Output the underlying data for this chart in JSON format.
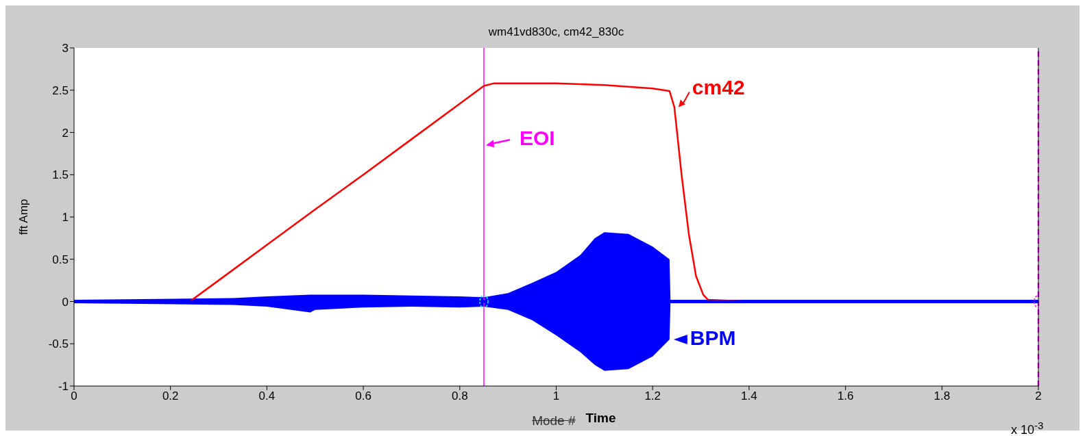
{
  "chart_data": {
    "type": "line",
    "title": "wm41vd830c, cm42_830c",
    "xlabel": "Time",
    "ylabel": "fft Amp",
    "annotations": [
      "Mode #",
      "x 10$^{-3}$"
    ],
    "xlim": [
      0,
      2
    ],
    "xticks": [
      0,
      0.2,
      0.4,
      0.6,
      0.8,
      1,
      1.2,
      1.4,
      1.6,
      1.8,
      2
    ],
    "ylim": [
      -1,
      3
    ],
    "yticks": [
      -1,
      -0.5,
      0,
      0.5,
      1,
      1.5,
      2,
      2.5,
      3
    ],
    "grid": false,
    "legend": "right",
    "ref_lines": [
      {
        "axis": "x",
        "value": 0.85,
        "label": "EOI",
        "color": "#ff00ff",
        "line_style": "solid"
      },
      {
        "axis": "x",
        "value": 2,
        "label": null,
        "color": "#ff00ff",
        "line_style": "dashed"
      }
    ],
    "series": [
      {
        "name": "cm42",
        "color": "#ff0000",
        "x": [
          0,
          0.24,
          0.3,
          0.4,
          0.5,
          0.6,
          0.7,
          0.8,
          0.85,
          0.87,
          0.95,
          1.0,
          1.05,
          1.1,
          1.15,
          1.2,
          1.235,
          1.245,
          1.26,
          1.275,
          1.29,
          1.305,
          1.315,
          1.4,
          2
        ],
        "values": [
          0,
          0,
          0.25,
          0.67,
          1.09,
          1.5,
          1.92,
          2.34,
          2.55,
          2.58,
          2.58,
          2.58,
          2.57,
          2.56,
          2.54,
          2.52,
          2.49,
          2.3,
          1.5,
          0.8,
          0.3,
          0.08,
          0.02,
          0,
          0
        ]
      },
      {
        "name": "BPM",
        "color": "#0000ff",
        "x": [
          0,
          0.33,
          0.4,
          0.49,
          0.5,
          0.6,
          0.7,
          0.8,
          0.85,
          0.9,
          0.95,
          1.0,
          1.05,
          1.08,
          1.1,
          1.15,
          1.2,
          1.235,
          1.237,
          2
        ],
        "values": [
          0,
          0,
          0,
          0,
          0,
          0,
          0,
          0,
          0,
          0,
          0,
          0,
          0,
          0,
          0,
          0,
          0,
          0,
          0,
          0
        ],
        "upper": [
          0.02,
          0.04,
          0.06,
          0.08,
          0.08,
          0.08,
          0.07,
          0.06,
          0.05,
          0.1,
          0.22,
          0.35,
          0.55,
          0.75,
          0.82,
          0.8,
          0.65,
          0.5,
          0.02,
          0.02
        ],
        "lower": [
          -0.02,
          -0.04,
          -0.06,
          -0.13,
          -0.1,
          -0.07,
          -0.06,
          -0.07,
          -0.06,
          -0.1,
          -0.22,
          -0.4,
          -0.6,
          -0.75,
          -0.82,
          -0.8,
          -0.65,
          -0.45,
          -0.02,
          -0.02
        ]
      },
      {
        "type": "scatter",
        "color": "#00ffff",
        "x": [
          0.85
        ],
        "values": [
          0
        ],
        "marker": "circle"
      },
      {
        "type": "scatter",
        "color": "#ff00ff",
        "x": [
          2
        ],
        "values": [
          0
        ],
        "marker": "circle"
      }
    ]
  }
}
